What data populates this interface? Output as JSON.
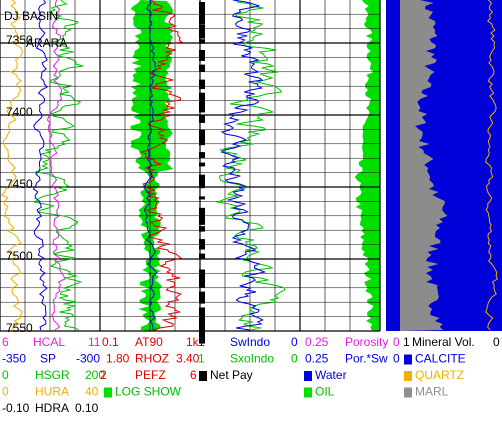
{
  "header": {
    "title": "DJ BASIN",
    "subtitle": "ARARA"
  },
  "depth_track": {
    "labels": [
      7350,
      7400,
      7450,
      7500,
      7550
    ]
  },
  "legend": {
    "rows": [
      [
        {
          "text": "6",
          "color": "#e020e0"
        },
        {
          "text": "HCAL",
          "color": "#e020e0"
        },
        {
          "text": "11",
          "color": "#e020e0"
        },
        {
          "text": "0.1",
          "color": "#e00000"
        },
        {
          "text": "AT90",
          "color": "#e00000"
        },
        {
          "text": "1k",
          "color": "#e00000"
        },
        {
          "text": "1",
          "color": "#0000e0"
        },
        {
          "text": "SwIndo",
          "color": "#0000e0"
        },
        {
          "text": "0",
          "color": "#0000e0"
        },
        {
          "text": "0.25",
          "color": "#e020e0"
        },
        {
          "text": "Porosity",
          "color": "#e020e0"
        },
        {
          "text": "0",
          "color": "#e020e0"
        },
        {
          "text": "1",
          "color": "#000000"
        },
        {
          "text": "Mineral Vol.",
          "color": "#000000"
        },
        {
          "text": "0",
          "color": "#000000"
        }
      ],
      [
        {
          "text": "-350",
          "color": "#0000e0"
        },
        {
          "text": "SP",
          "color": "#0000e0"
        },
        {
          "text": "-300",
          "color": "#0000e0"
        },
        {
          "text": "1.80",
          "color": "#e00000"
        },
        {
          "text": "RHOZ",
          "color": "#e00000"
        },
        {
          "text": "3.40",
          "color": "#e00000"
        },
        {
          "text": "1",
          "color": "#00c000"
        },
        {
          "text": "SxoIndo",
          "color": "#00c000"
        },
        {
          "text": "0",
          "color": "#00c000"
        },
        {
          "text": "0.25",
          "color": "#0000e0"
        },
        {
          "text": "Por.*Sw",
          "color": "#0000e0"
        },
        {
          "text": "0",
          "color": "#0000e0"
        },
        {
          "text": "CALCITE",
          "color": "#0000e0",
          "swatch": "#0000e0"
        }
      ],
      [
        {
          "text": "0",
          "color": "#00c000"
        },
        {
          "text": "HSGR",
          "color": "#00c000"
        },
        {
          "text": "200",
          "color": "#00c000"
        },
        {
          "text": "2",
          "color": "#e00000"
        },
        {
          "text": "PEFZ",
          "color": "#e00000"
        },
        {
          "text": "6",
          "color": "#e00000"
        },
        {
          "text": "Net Pay",
          "color": "#000000",
          "swatch": "#000000"
        },
        {
          "text": "Water",
          "color": "#0000e0",
          "swatch": "#0000e0"
        },
        {
          "text": "QUARTZ",
          "color": "#f0b000",
          "swatch": "#f0b000"
        }
      ],
      [
        {
          "text": "0",
          "color": "#f0b000"
        },
        {
          "text": "HURA",
          "color": "#f0b000"
        },
        {
          "text": "40",
          "color": "#f0b000"
        },
        {
          "text": "LOG SHOW",
          "color": "#00c000",
          "swatch": "#00e000"
        },
        {
          "text": "OIL",
          "color": "#00c000",
          "swatch": "#00e000"
        },
        {
          "text": "MARL",
          "color": "#909090",
          "swatch": "#909090"
        }
      ],
      [
        {
          "text": "-0.10",
          "color": "#000000"
        },
        {
          "text": "HDRA",
          "color": "#000000"
        },
        {
          "text": "0.10",
          "color": "#000000"
        }
      ]
    ]
  }
}
